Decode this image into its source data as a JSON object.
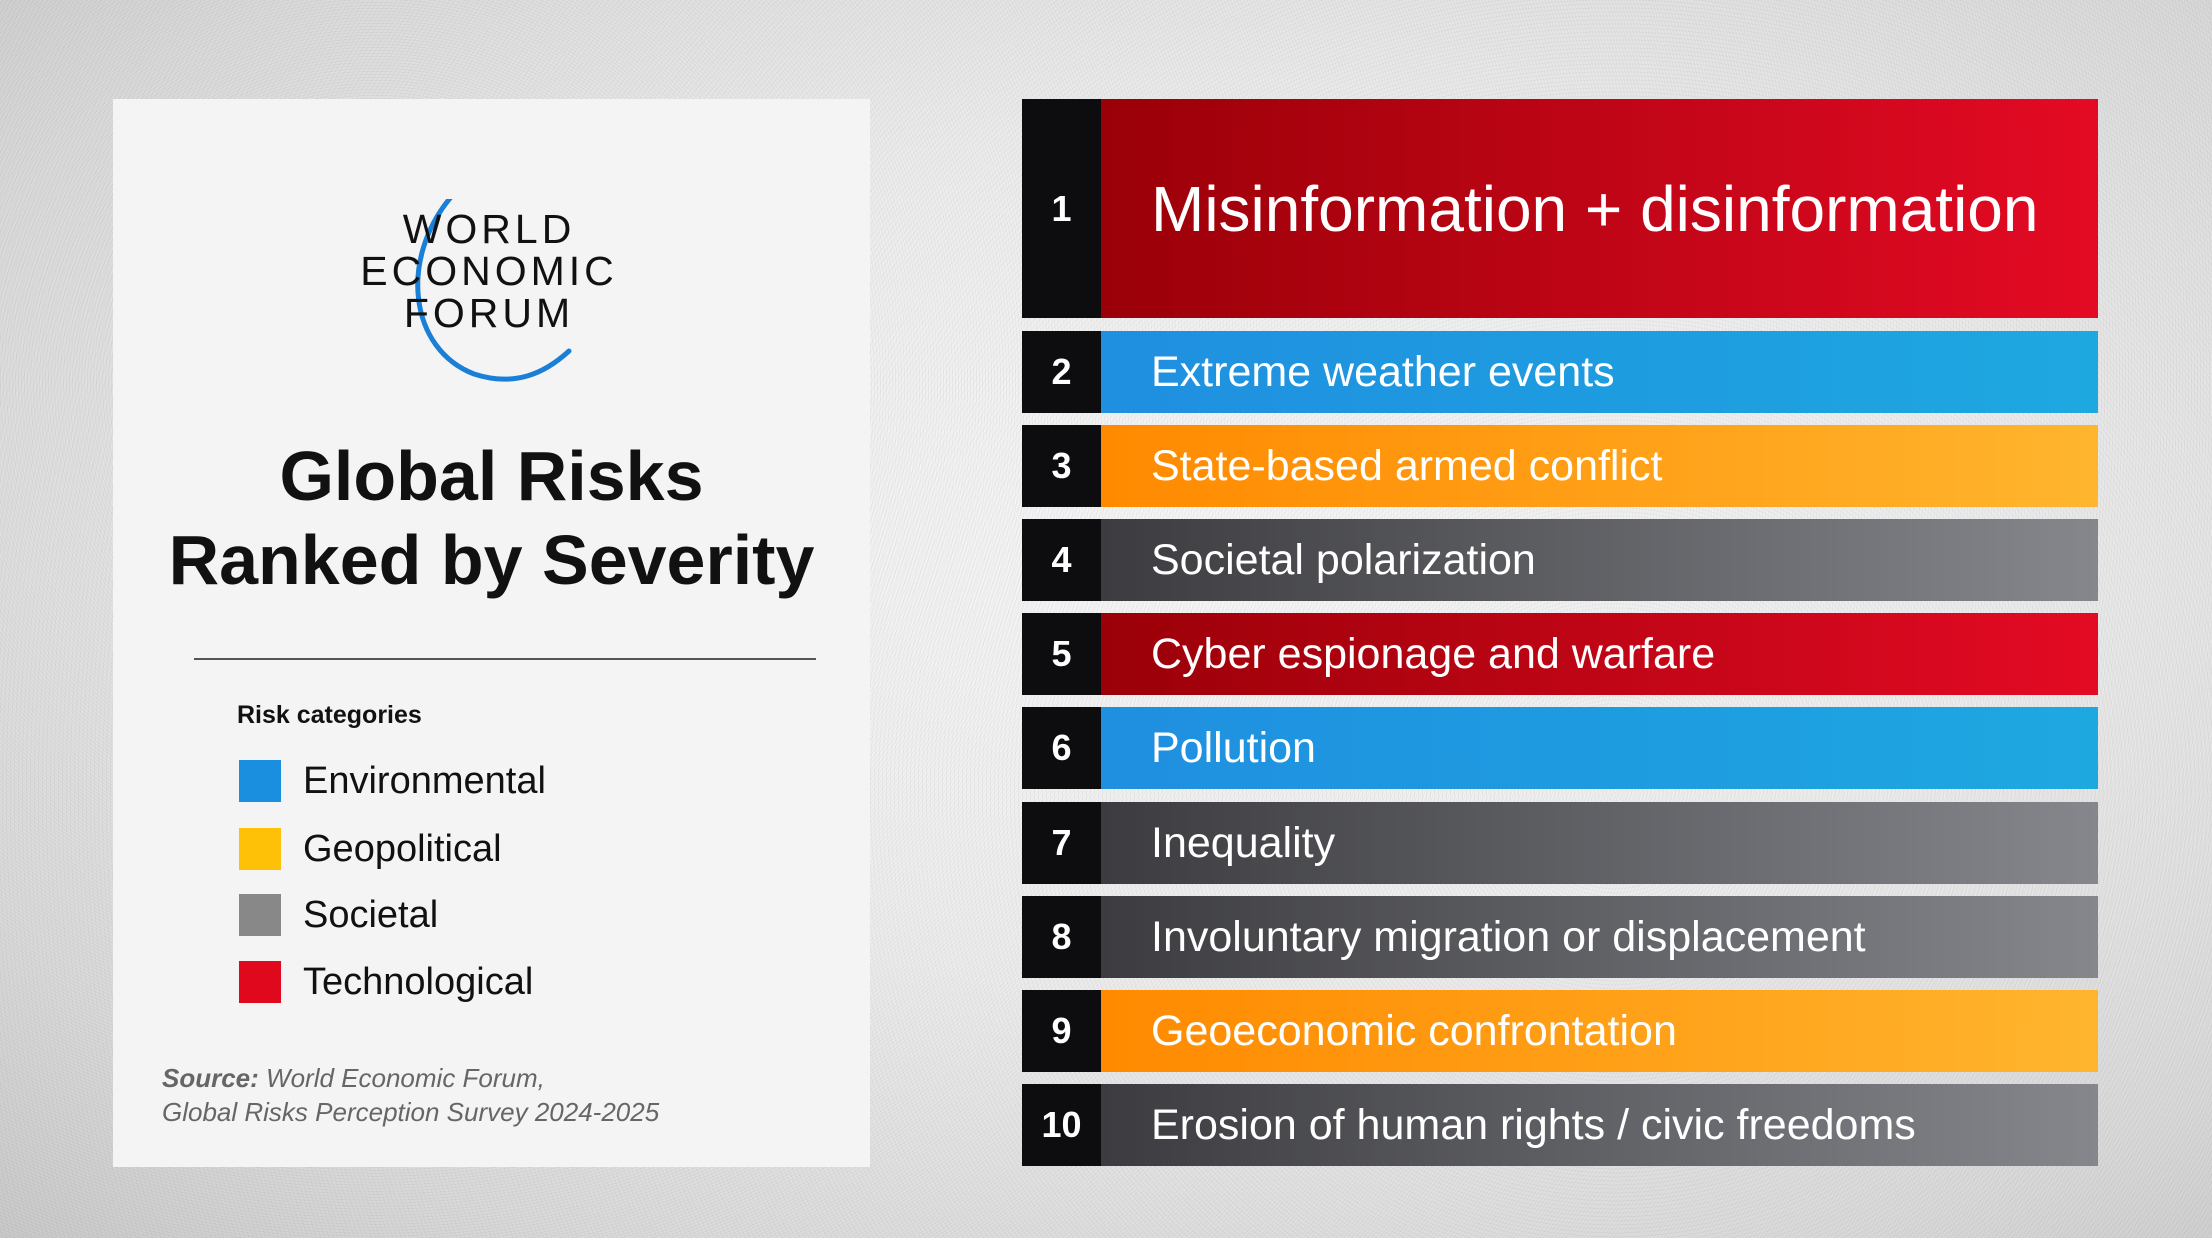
{
  "logo": {
    "lines": [
      "WORLD",
      "ECONOMIC",
      "FORUM"
    ]
  },
  "title": {
    "line1": "Global Risks",
    "line2": "Ranked by Severity"
  },
  "legend": {
    "heading": "Risk categories",
    "items": [
      {
        "label": "Environmental",
        "color": "#1a8fe0"
      },
      {
        "label": "Geopolitical",
        "color": "#ffc107"
      },
      {
        "label": "Societal",
        "color": "#888888"
      },
      {
        "label": "Technological",
        "color": "#e0081c"
      }
    ]
  },
  "source": {
    "prefix": "Source:",
    "line1": "World Economic Forum,",
    "line2": "Global Risks Perception Survey 2024-2025"
  },
  "risks": [
    {
      "rank": "1",
      "label": "Misinformation + disinformation",
      "category": "Technological"
    },
    {
      "rank": "2",
      "label": "Extreme weather events",
      "category": "Environmental"
    },
    {
      "rank": "3",
      "label": "State-based armed conflict",
      "category": "Geopolitical"
    },
    {
      "rank": "4",
      "label": "Societal polarization",
      "category": "Societal"
    },
    {
      "rank": "5",
      "label": "Cyber espionage and warfare",
      "category": "Technological"
    },
    {
      "rank": "6",
      "label": "Pollution",
      "category": "Environmental"
    },
    {
      "rank": "7",
      "label": "Inequality",
      "category": "Societal"
    },
    {
      "rank": "8",
      "label": "Involuntary migration or displacement",
      "category": "Societal"
    },
    {
      "rank": "9",
      "label": "Geoeconomic confrontation",
      "category": "Geopolitical"
    },
    {
      "rank": "10",
      "label": "Erosion of human rights / civic freedoms",
      "category": "Societal"
    }
  ]
}
